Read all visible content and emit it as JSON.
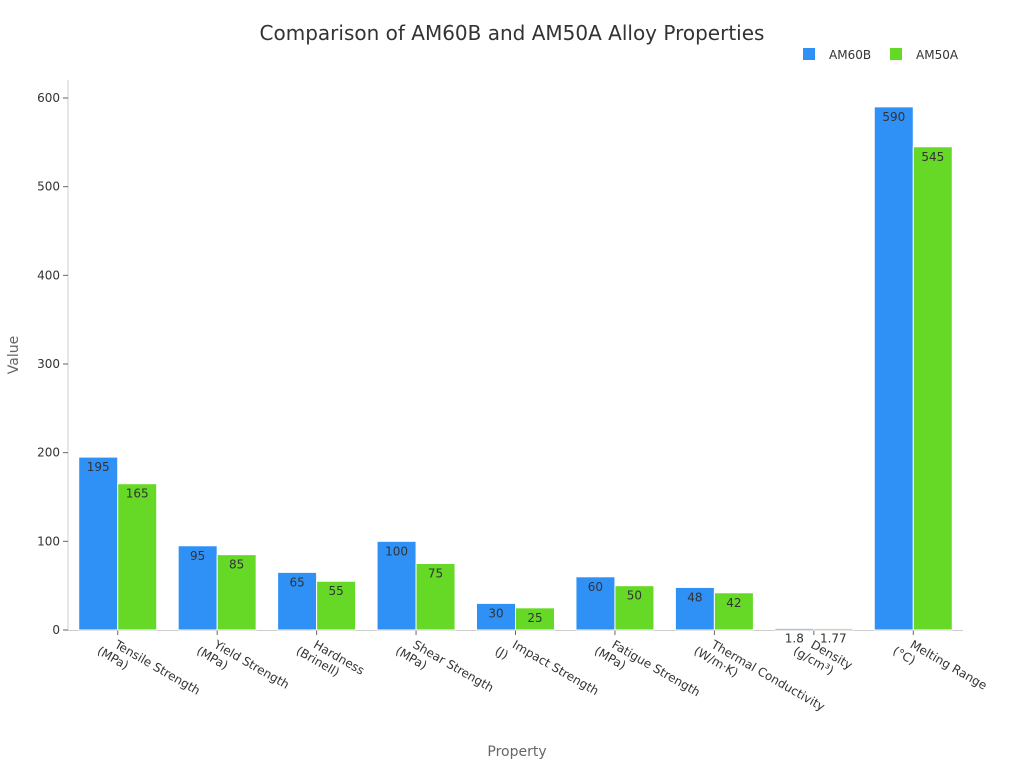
{
  "chart_data": {
    "type": "bar",
    "title": "Comparison of AM60B and AM50A Alloy Properties",
    "xlabel": "Property",
    "ylabel": "Value",
    "ylim": [
      0,
      600
    ],
    "yticks": [
      0,
      100,
      200,
      300,
      400,
      500,
      600
    ],
    "grid": false,
    "legend_position": "top-right",
    "categories": [
      [
        "Tensile Strength",
        "(MPa)"
      ],
      [
        "Yield Strength",
        "(MPa)"
      ],
      [
        "Hardness",
        "(Brinell)"
      ],
      [
        "Shear Strength",
        "(MPa)"
      ],
      [
        "Impact Strength",
        "(J)"
      ],
      [
        "Fatigue Strength",
        "(MPa)"
      ],
      [
        "Thermal Conductivity",
        "(W/m·K)"
      ],
      [
        "Density",
        "(g/cm³)"
      ],
      [
        "Melting Range",
        "(°C)"
      ]
    ],
    "series": [
      {
        "name": "AM60B",
        "color": "#2f90f6",
        "values": [
          195,
          95,
          65,
          100,
          30,
          60,
          48,
          1.8,
          590
        ]
      },
      {
        "name": "AM50A",
        "color": "#66d927",
        "values": [
          165,
          85,
          55,
          75,
          25,
          50,
          42,
          1.77,
          545
        ]
      }
    ]
  }
}
